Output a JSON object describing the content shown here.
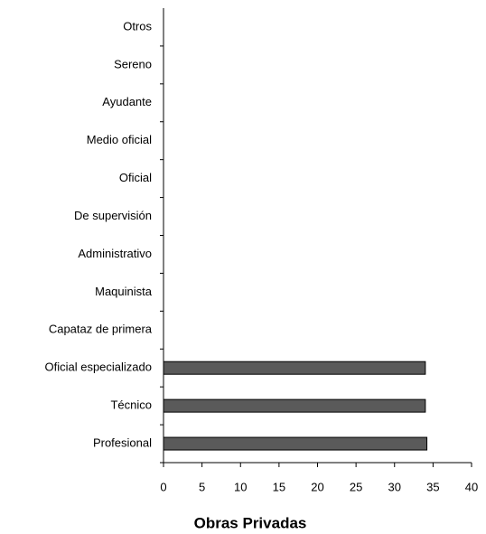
{
  "chart_data": {
    "type": "barh",
    "xlabel": "Obras Privadas",
    "categories": [
      "Profesional",
      "Técnico",
      "Oficial especializado",
      "Capataz de primera",
      "Maquinista",
      "Administrativo",
      "De supervisión",
      "Oficial",
      "Medio oficial",
      "Ayudante",
      "Sereno",
      "Otros"
    ],
    "values": [
      34.2,
      34,
      34,
      0,
      0,
      0,
      0,
      0,
      0,
      0,
      0,
      0
    ],
    "color": "#5a5a5a",
    "xlim": [
      0,
      40
    ],
    "xticks": [
      0,
      5,
      10,
      15,
      20,
      25,
      30,
      35,
      40
    ],
    "grid": false
  }
}
